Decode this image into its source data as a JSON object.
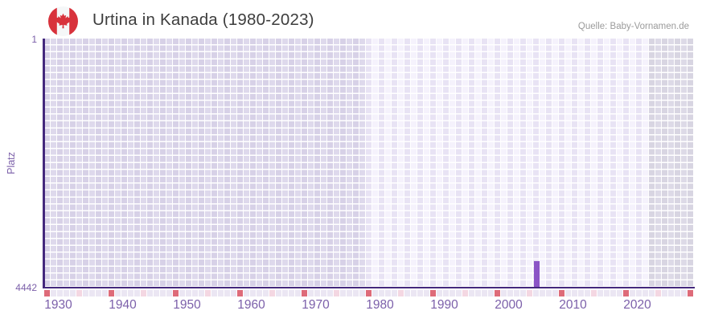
{
  "header": {
    "title": "Urtina in Kanada (1980-2023)",
    "flag_icon": "canada-flag-icon",
    "source": "Quelle: Baby-Vornamen.de"
  },
  "chart_data": {
    "type": "bar",
    "title": "Urtina in Kanada (1980-2023)",
    "source": "Quelle: Baby-Vornamen.de",
    "ylabel": "Platz",
    "y_axis": {
      "top_tick_label": "1",
      "bottom_tick_label": "4442",
      "min": 1,
      "max": 4442,
      "inverted": true
    },
    "x_axis": {
      "domain_start": 1930,
      "domain_end": 2030,
      "tick_labels": [
        "1930",
        "1940",
        "1950",
        "1960",
        "1970",
        "1980",
        "1990",
        "2000",
        "2010",
        "2020"
      ],
      "decade_mark_years": [
        1930,
        1940,
        1950,
        1960,
        1970,
        1980,
        1990,
        2000,
        2010,
        2020,
        2030
      ],
      "half_decade_mark_years": [
        1935,
        1945,
        1955,
        1965,
        1975,
        1985,
        1995,
        2005,
        2015,
        2025
      ]
    },
    "data_period": [
      1980,
      2023
    ],
    "points": [
      {
        "year": 2006,
        "rank": 3982
      }
    ],
    "grid": "checkerboard",
    "legend": "none"
  },
  "colors": {
    "title_text": "#3d3d3d",
    "source_text": "#9b9b9b",
    "axis_line": "#44287d",
    "tick_text": "#7c60aa",
    "bar": "#8b54c6",
    "plot_zones": {
      "pre_period": [
        "#d7d1e7",
        "#ded9ec"
      ],
      "in_period": [
        "#e8e3f4",
        "#f5f2fc"
      ],
      "post_period": [
        "#d8d5e2",
        "#dddae7"
      ]
    },
    "strip": {
      "default": "#ebe6f3",
      "decade": "#de6b79",
      "half_decade": "#f4d7e2"
    }
  }
}
